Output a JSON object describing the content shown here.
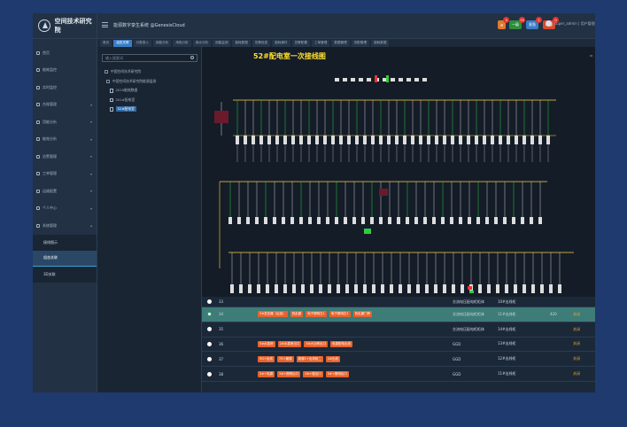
{
  "app": {
    "logo_text": "空间技术研究院",
    "title": "能源数字孪生系统 @GenesisCloud"
  },
  "header": {
    "badges": [
      {
        "label": "",
        "count": "0",
        "color": "#e07a2e",
        "left": 452
      },
      {
        "label": "一级",
        "count": "19",
        "color": "#2d8f3c",
        "left": 465
      },
      {
        "label": "紧急",
        "count": "2",
        "color": "#3a7cc4",
        "left": 484
      },
      {
        "label": "严重",
        "count": "0",
        "color": "#d84a2a",
        "left": 503
      }
    ],
    "user": "super_admin | 用户管理"
  },
  "sidebar": {
    "items": [
      {
        "label": "首页"
      },
      {
        "label": "能耗监控"
      },
      {
        "label": "实时监控"
      },
      {
        "label": "台账管理"
      },
      {
        "label": "用能分析"
      },
      {
        "label": "能效分析"
      },
      {
        "label": "告警管理"
      },
      {
        "label": "工单管理"
      },
      {
        "label": "运维配置"
      },
      {
        "label": "个人中心"
      },
      {
        "label": "系统管理"
      }
    ],
    "sub_items": [
      {
        "label": "接线图示"
      },
      {
        "label": "组态关联"
      },
      {
        "label": "3D关联"
      }
    ]
  },
  "tabs": [
    "首页",
    "组态关联",
    "分类录入",
    "用能分析",
    "用电分析",
    "用水分析",
    "用能监测",
    "能耗数据",
    "告警信息",
    "能耗事件",
    "告警配置",
    "工单管理",
    "数据管理",
    "供配管理",
    "能耗数据"
  ],
  "tree": {
    "search_placeholder": "输入搜索词",
    "nodes": [
      {
        "label": "中国空间技术研究院",
        "type": "box"
      },
      {
        "label": "中国空间技术研究院能源监测",
        "type": "box"
      },
      {
        "label": "2019能耗数据",
        "type": "file"
      },
      {
        "label": "201#配电室",
        "type": "file"
      },
      {
        "label": "52#配电室",
        "type": "file"
      }
    ]
  },
  "diagram": {
    "title": "52#配电室一次接线图"
  },
  "table": {
    "rows": [
      {
        "id": "33",
        "tags": [],
        "c1": "交流电压配电柜柜体",
        "c2": "10#出线柜",
        "c3": "",
        "c4": ""
      },
      {
        "id": "34",
        "tags": [
          "3#变压器（后加）",
          "西走廊",
          "电子照明左1",
          "电子照明右1",
          "西走廊门旁"
        ],
        "c1": "交流电压配电柜柜体",
        "c2": "11#出线柜",
        "c3": "420",
        "c4": "关闭"
      },
      {
        "id": "35",
        "tags": [],
        "c1": "交流电压配电柜柜体",
        "c2": "14#出线柜",
        "c3": "",
        "c4": "关闭"
      },
      {
        "id": "36",
        "tags": [
          "5#水泵房",
          "2#水泵房出口",
          "3#大功率出口",
          "电源配电出线"
        ],
        "c1": "GGD",
        "c2": "13#出线柜",
        "c3": "",
        "c4": "关闭"
      },
      {
        "id": "37",
        "tags": [
          "5G+出线",
          "7G+套楼",
          "新楼1+出线柜二",
          "2#出线"
        ],
        "c1": "GGD",
        "c2": "12#出线柜",
        "c3": "",
        "c4": "关闭"
      },
      {
        "id": "38",
        "tags": [
          "3#+电源",
          "3#+照明出口",
          "3#+楼出口",
          "3#+照明出口"
        ],
        "c1": "GGD",
        "c2": "11#出线柜",
        "c3": "",
        "c4": "关闭"
      }
    ]
  }
}
